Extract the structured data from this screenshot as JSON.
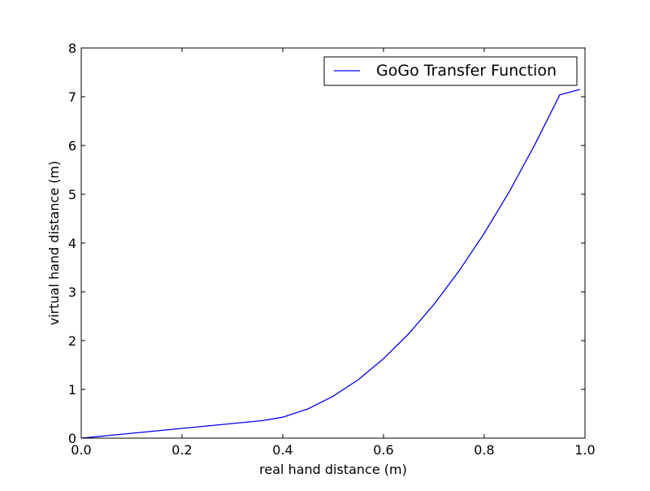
{
  "chart_data": {
    "type": "line",
    "title": "",
    "xlabel": "real hand distance (m)",
    "ylabel": "virtual hand distance (m)",
    "xlim": [
      0.0,
      1.0
    ],
    "ylim": [
      0,
      8
    ],
    "x_ticks": [
      "0.0",
      "0.2",
      "0.4",
      "0.6",
      "0.8",
      "1.0"
    ],
    "y_ticks": [
      "0",
      "1",
      "2",
      "3",
      "4",
      "5",
      "6",
      "7",
      "8"
    ],
    "grid": false,
    "legend_position": "top-right",
    "series": [
      {
        "name": "GoGo Transfer Function",
        "color": "#0000ff",
        "x": [
          0.0,
          0.05,
          0.1,
          0.15,
          0.2,
          0.25,
          0.3,
          0.35,
          0.36,
          0.4,
          0.45,
          0.5,
          0.55,
          0.6,
          0.65,
          0.7,
          0.75,
          0.8,
          0.85,
          0.9,
          0.95,
          0.99
        ],
        "y": [
          0.0,
          0.05,
          0.1,
          0.15,
          0.2,
          0.25,
          0.3,
          0.35,
          0.36,
          0.43,
          0.6,
          0.86,
          1.2,
          1.63,
          2.14,
          2.74,
          3.43,
          4.2,
          5.06,
          6.01,
          7.04,
          7.15
        ]
      }
    ]
  }
}
